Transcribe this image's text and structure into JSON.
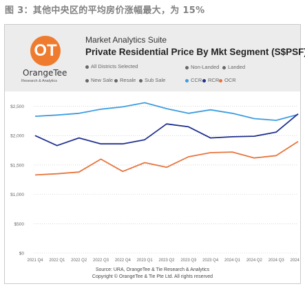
{
  "caption": "图 3：其他中央区的平均房价涨幅最大，为 15%",
  "header": {
    "logo_mark": "OT",
    "logo_name": "OrangeTee",
    "logo_sub": "Research & Analytics",
    "suite": "Market Analytics Suite",
    "title": "Private Residential Price By Mkt Segment (S$PSF)"
  },
  "filters": {
    "districts": "All Districts Selected",
    "landed_options": [
      "Non-Landed",
      "Landed"
    ],
    "sale_types": [
      "New Sale",
      "Resale",
      "Sub Sale"
    ],
    "legend": [
      {
        "label": "CCR",
        "color": "#3a9de0"
      },
      {
        "label": "RCR",
        "color": "#1f2f8e"
      },
      {
        "label": "OCR",
        "color": "#e8733a"
      }
    ]
  },
  "chart_data": {
    "type": "line",
    "categories": [
      "2021 Q4",
      "2022 Q1",
      "2022 Q2",
      "2022 Q3",
      "2022 Q4",
      "2023 Q1",
      "2023 Q2",
      "2023 Q3",
      "2023 Q4",
      "2024 Q1",
      "2024 Q2",
      "2024 Q3",
      "2024 Q4"
    ],
    "ylim": [
      0,
      2600
    ],
    "yticks": [
      0,
      500,
      1000,
      1500,
      2000,
      2500
    ],
    "ytick_labels": [
      "$0",
      "$500",
      "$1,000",
      "$1,500",
      "$2,000",
      "$2,500"
    ],
    "series": [
      {
        "name": "CCR",
        "color": "#3a9de0",
        "values": [
          2330,
          2350,
          2380,
          2450,
          2490,
          2560,
          2460,
          2380,
          2440,
          2380,
          2290,
          2260,
          2360
        ]
      },
      {
        "name": "RCR",
        "color": "#1f2f8e",
        "values": [
          2000,
          1830,
          1960,
          1860,
          1860,
          1930,
          2200,
          2150,
          1960,
          1980,
          1990,
          2060,
          2370
        ]
      },
      {
        "name": "OCR",
        "color": "#e8733a",
        "values": [
          1330,
          1350,
          1380,
          1600,
          1390,
          1540,
          1460,
          1640,
          1710,
          1720,
          1620,
          1660,
          1900
        ]
      }
    ]
  },
  "footer": {
    "source": "Source: URA, OrangeTee & Tie Research & Analytics",
    "copyright": "Copyright © OrangeTee & Tie Pte Ltd. All rights reserved"
  }
}
